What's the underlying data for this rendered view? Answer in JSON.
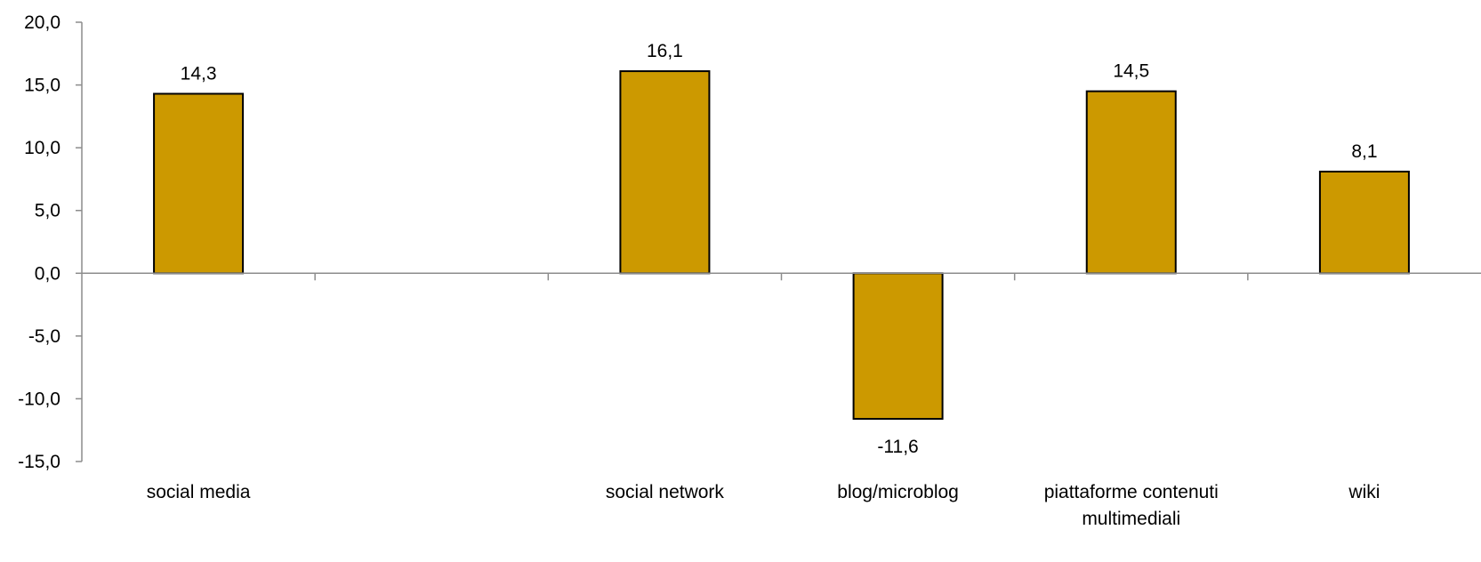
{
  "chart_data": {
    "type": "bar",
    "categories": [
      "social media",
      "",
      "social network",
      "blog/microblog",
      "piattaforme contenuti multimediali",
      "wiki"
    ],
    "category_lines": [
      [
        "social media"
      ],
      [],
      [
        "social network"
      ],
      [
        "blog/microblog"
      ],
      [
        "piattaforme contenuti",
        "multimediali"
      ],
      [
        "wiki"
      ]
    ],
    "values": [
      14.3,
      null,
      16.1,
      -11.6,
      14.5,
      8.1
    ],
    "value_labels": [
      "14,3",
      "",
      "16,1",
      "-11,6",
      "14,5",
      "8,1"
    ],
    "ylim": [
      -15,
      20
    ],
    "yticks": [
      20,
      15,
      10,
      5,
      0,
      -5,
      -10,
      -15
    ],
    "ytick_labels": [
      "20,0",
      "15,0",
      "10,0",
      "5,0",
      "0,0",
      "-5,0",
      "-10,0",
      "-15,0"
    ],
    "bar_color": "#cc9900",
    "title": "",
    "xlabel": "",
    "ylabel": "",
    "grid": false
  }
}
